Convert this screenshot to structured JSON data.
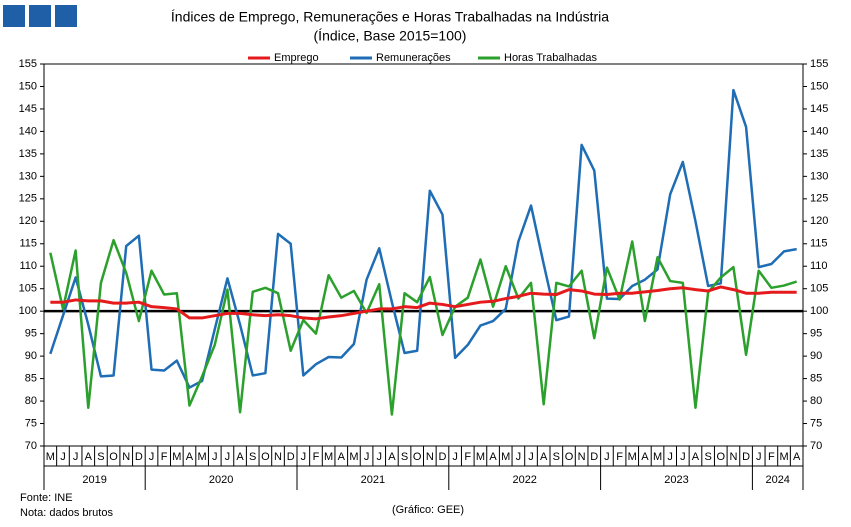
{
  "chart_data": {
    "type": "line",
    "title": "Índices de Emprego, Remunerações e Horas Trabalhadas na Indústria",
    "subtitle": "(Índice, Base 2015=100)",
    "categories": [
      "M",
      "J",
      "J",
      "A",
      "S",
      "O",
      "N",
      "D",
      "J",
      "F",
      "M",
      "A",
      "M",
      "J",
      "J",
      "A",
      "S",
      "O",
      "N",
      "D",
      "J",
      "F",
      "M",
      "A",
      "M",
      "J",
      "J",
      "A",
      "S",
      "O",
      "N",
      "D",
      "J",
      "F",
      "M",
      "A",
      "M",
      "J",
      "J",
      "A",
      "S",
      "O",
      "N",
      "D",
      "J",
      "F",
      "M",
      "A",
      "M",
      "J",
      "J",
      "A",
      "S",
      "O",
      "N",
      "D",
      "J",
      "F",
      "M",
      "A"
    ],
    "x_groups": [
      {
        "label": "2019",
        "span": 8
      },
      {
        "label": "2020",
        "span": 12
      },
      {
        "label": "2021",
        "span": 12
      },
      {
        "label": "2022",
        "span": 12
      },
      {
        "label": "2023",
        "span": 12
      },
      {
        "label": "2024",
        "span": 4
      }
    ],
    "series": [
      {
        "name": "Emprego",
        "color": "#e41a1c",
        "values": [
          102,
          102,
          102.5,
          102.3,
          102.3,
          101.8,
          101.8,
          102,
          101,
          100.8,
          100.5,
          98.5,
          98.5,
          99,
          99.5,
          99.5,
          99.2,
          99,
          99.2,
          99,
          98.5,
          98.3,
          98.7,
          99,
          99.5,
          100,
          100.5,
          100.5,
          101,
          100.8,
          101.8,
          101.5,
          101,
          101.5,
          102,
          102.2,
          102.8,
          103.3,
          104,
          103.8,
          103.7,
          104.8,
          104.5,
          103.8,
          103.7,
          104,
          104,
          104.3,
          104.6,
          105,
          105.2,
          104.8,
          104.5,
          105.4,
          104.8,
          104,
          104,
          104.2,
          104.2,
          104.2
        ]
      },
      {
        "name": "Remunerações",
        "color": "#1f6db5",
        "values": [
          90.5,
          99,
          107.5,
          97,
          85.5,
          85.7,
          114.5,
          116.8,
          87,
          86.8,
          89,
          83,
          84.5,
          96,
          107.3,
          97,
          85.7,
          86.2,
          117.2,
          115,
          85.7,
          88.2,
          89.8,
          89.7,
          92.7,
          107,
          114,
          102,
          90.7,
          91.2,
          126.8,
          121.5,
          89.6,
          92.5,
          96.8,
          97.8,
          100.5,
          115.5,
          123.5,
          110.5,
          98,
          98.8,
          137,
          131.3,
          102.8,
          102.7,
          105.6,
          107,
          109.3,
          126,
          133.2,
          120,
          105.6,
          106.2,
          149.2,
          141,
          109.8,
          110.5,
          113.3,
          113.8
        ]
      },
      {
        "name": "Horas Trabalhadas",
        "color": "#2ca02c",
        "values": [
          113,
          100.5,
          113.5,
          78.5,
          106.3,
          115.8,
          108.5,
          97.8,
          109,
          103.7,
          104,
          79,
          85.5,
          92.5,
          104.8,
          77.5,
          104.3,
          105.2,
          104,
          91.2,
          98,
          95,
          108,
          103,
          104.5,
          99.6,
          106,
          77,
          104,
          102,
          107.6,
          94.7,
          101,
          103,
          111.5,
          101,
          110,
          102.8,
          106.3,
          79.3,
          106.3,
          105.5,
          109,
          94,
          109.7,
          102.6,
          115.5,
          97.8,
          112,
          106.7,
          106.3,
          78.5,
          104.2,
          107.5,
          109.8,
          90.3,
          109,
          105.2,
          105.7,
          106.6
        ]
      }
    ],
    "reference_line": 100,
    "ylim": [
      70,
      155
    ],
    "yticks": [
      70,
      75,
      80,
      85,
      90,
      95,
      100,
      105,
      110,
      115,
      120,
      125,
      130,
      135,
      140,
      145,
      150,
      155
    ],
    "y2lim": [
      70,
      155
    ],
    "y2ticks": [
      70,
      75,
      80,
      85,
      90,
      95,
      100,
      105,
      110,
      115,
      120,
      125,
      130,
      135,
      140,
      145,
      150,
      155
    ],
    "legend": "top",
    "notes": [
      "Fonte: INE",
      "Nota: dados brutos"
    ],
    "credit": "(Gráfico: GEE)"
  }
}
